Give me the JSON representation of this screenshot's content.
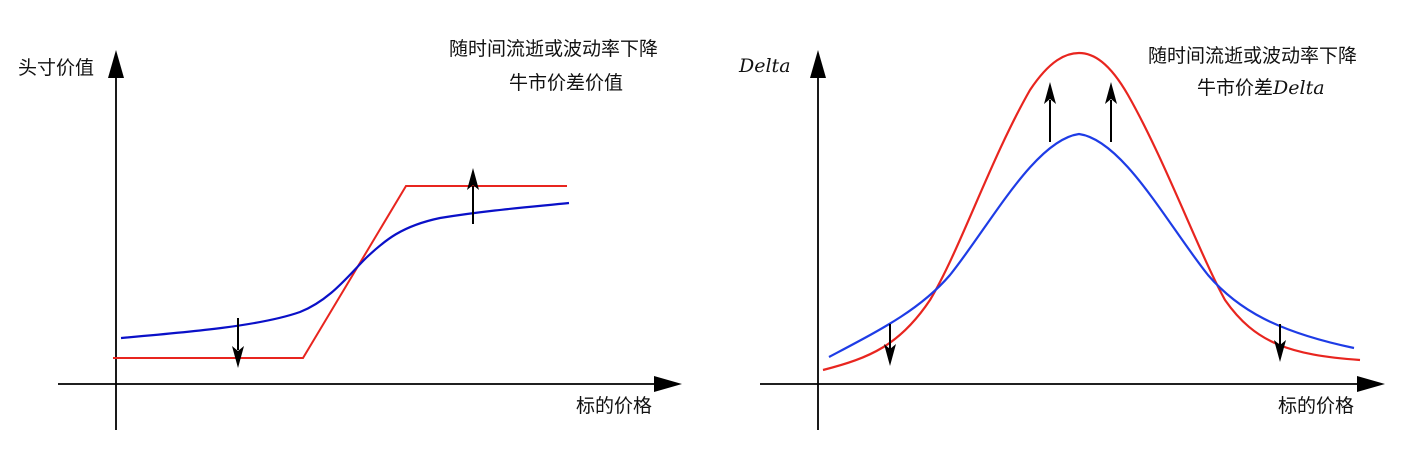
{
  "left_panel": {
    "y_axis_label": "头寸价值",
    "x_axis_label": "标的价格",
    "annotation_line1": "随时间流逝或波动率下降",
    "annotation_line2": "牛市价差价值"
  },
  "right_panel": {
    "y_axis_label": "Delta",
    "x_axis_label": "标的价格",
    "annotation_line1": "随时间流逝或波动率下降",
    "annotation_line2_text": "牛市价差",
    "annotation_line2_math": "Delta"
  },
  "colors": {
    "red_curve": "#e8251f",
    "blue_curve_left": "#0a10c8",
    "blue_curve_right": "#1e3ce6",
    "axis": "#000000"
  }
}
